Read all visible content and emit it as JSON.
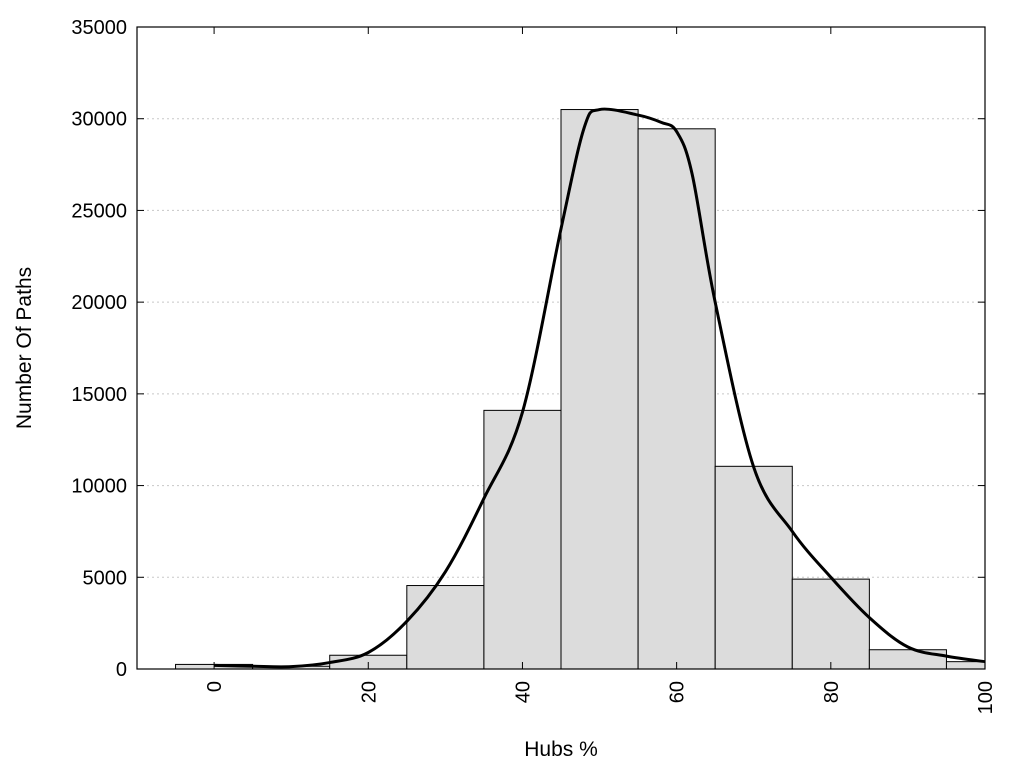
{
  "chart_data": {
    "type": "bar",
    "xlabel": "Hubs %",
    "ylabel": "Number Of Paths",
    "xlim": [
      -10,
      100
    ],
    "ylim": [
      0,
      35000
    ],
    "grid": "horizontal dotted",
    "x_ticks": [
      "0",
      "20",
      "40",
      "60",
      "80",
      "100"
    ],
    "y_ticks": [
      "0",
      "5000",
      "10000",
      "15000",
      "20000",
      "25000",
      "30000",
      "35000"
    ],
    "bin_width": 10,
    "bins": [
      {
        "center": 0,
        "value": 250
      },
      {
        "center": 10,
        "value": 150
      },
      {
        "center": 20,
        "value": 750
      },
      {
        "center": 30,
        "value": 4550
      },
      {
        "center": 40,
        "value": 14100
      },
      {
        "center": 50,
        "value": 30500
      },
      {
        "center": 60,
        "value": 29450
      },
      {
        "center": 70,
        "value": 11050
      },
      {
        "center": 80,
        "value": 4900
      },
      {
        "center": 90,
        "value": 1050
      },
      {
        "center": 100,
        "value": 400
      }
    ],
    "smooth_curve": {
      "x": [
        0,
        5,
        10,
        15,
        20,
        25,
        30,
        35,
        40,
        45,
        48,
        50,
        55,
        58,
        60,
        62,
        65,
        70,
        75,
        80,
        85,
        90,
        95,
        100
      ],
      "y": [
        200,
        150,
        130,
        350,
        900,
        2600,
        5300,
        9300,
        14000,
        24000,
        29500,
        30500,
        30200,
        29800,
        29300,
        27000,
        20000,
        11000,
        7500,
        5000,
        2800,
        1200,
        700,
        400
      ]
    },
    "colors": {
      "bar_fill": "#dcdcdc",
      "bar_stroke": "#000000",
      "curve": "#000000",
      "grid": "#c8c8c8"
    }
  }
}
